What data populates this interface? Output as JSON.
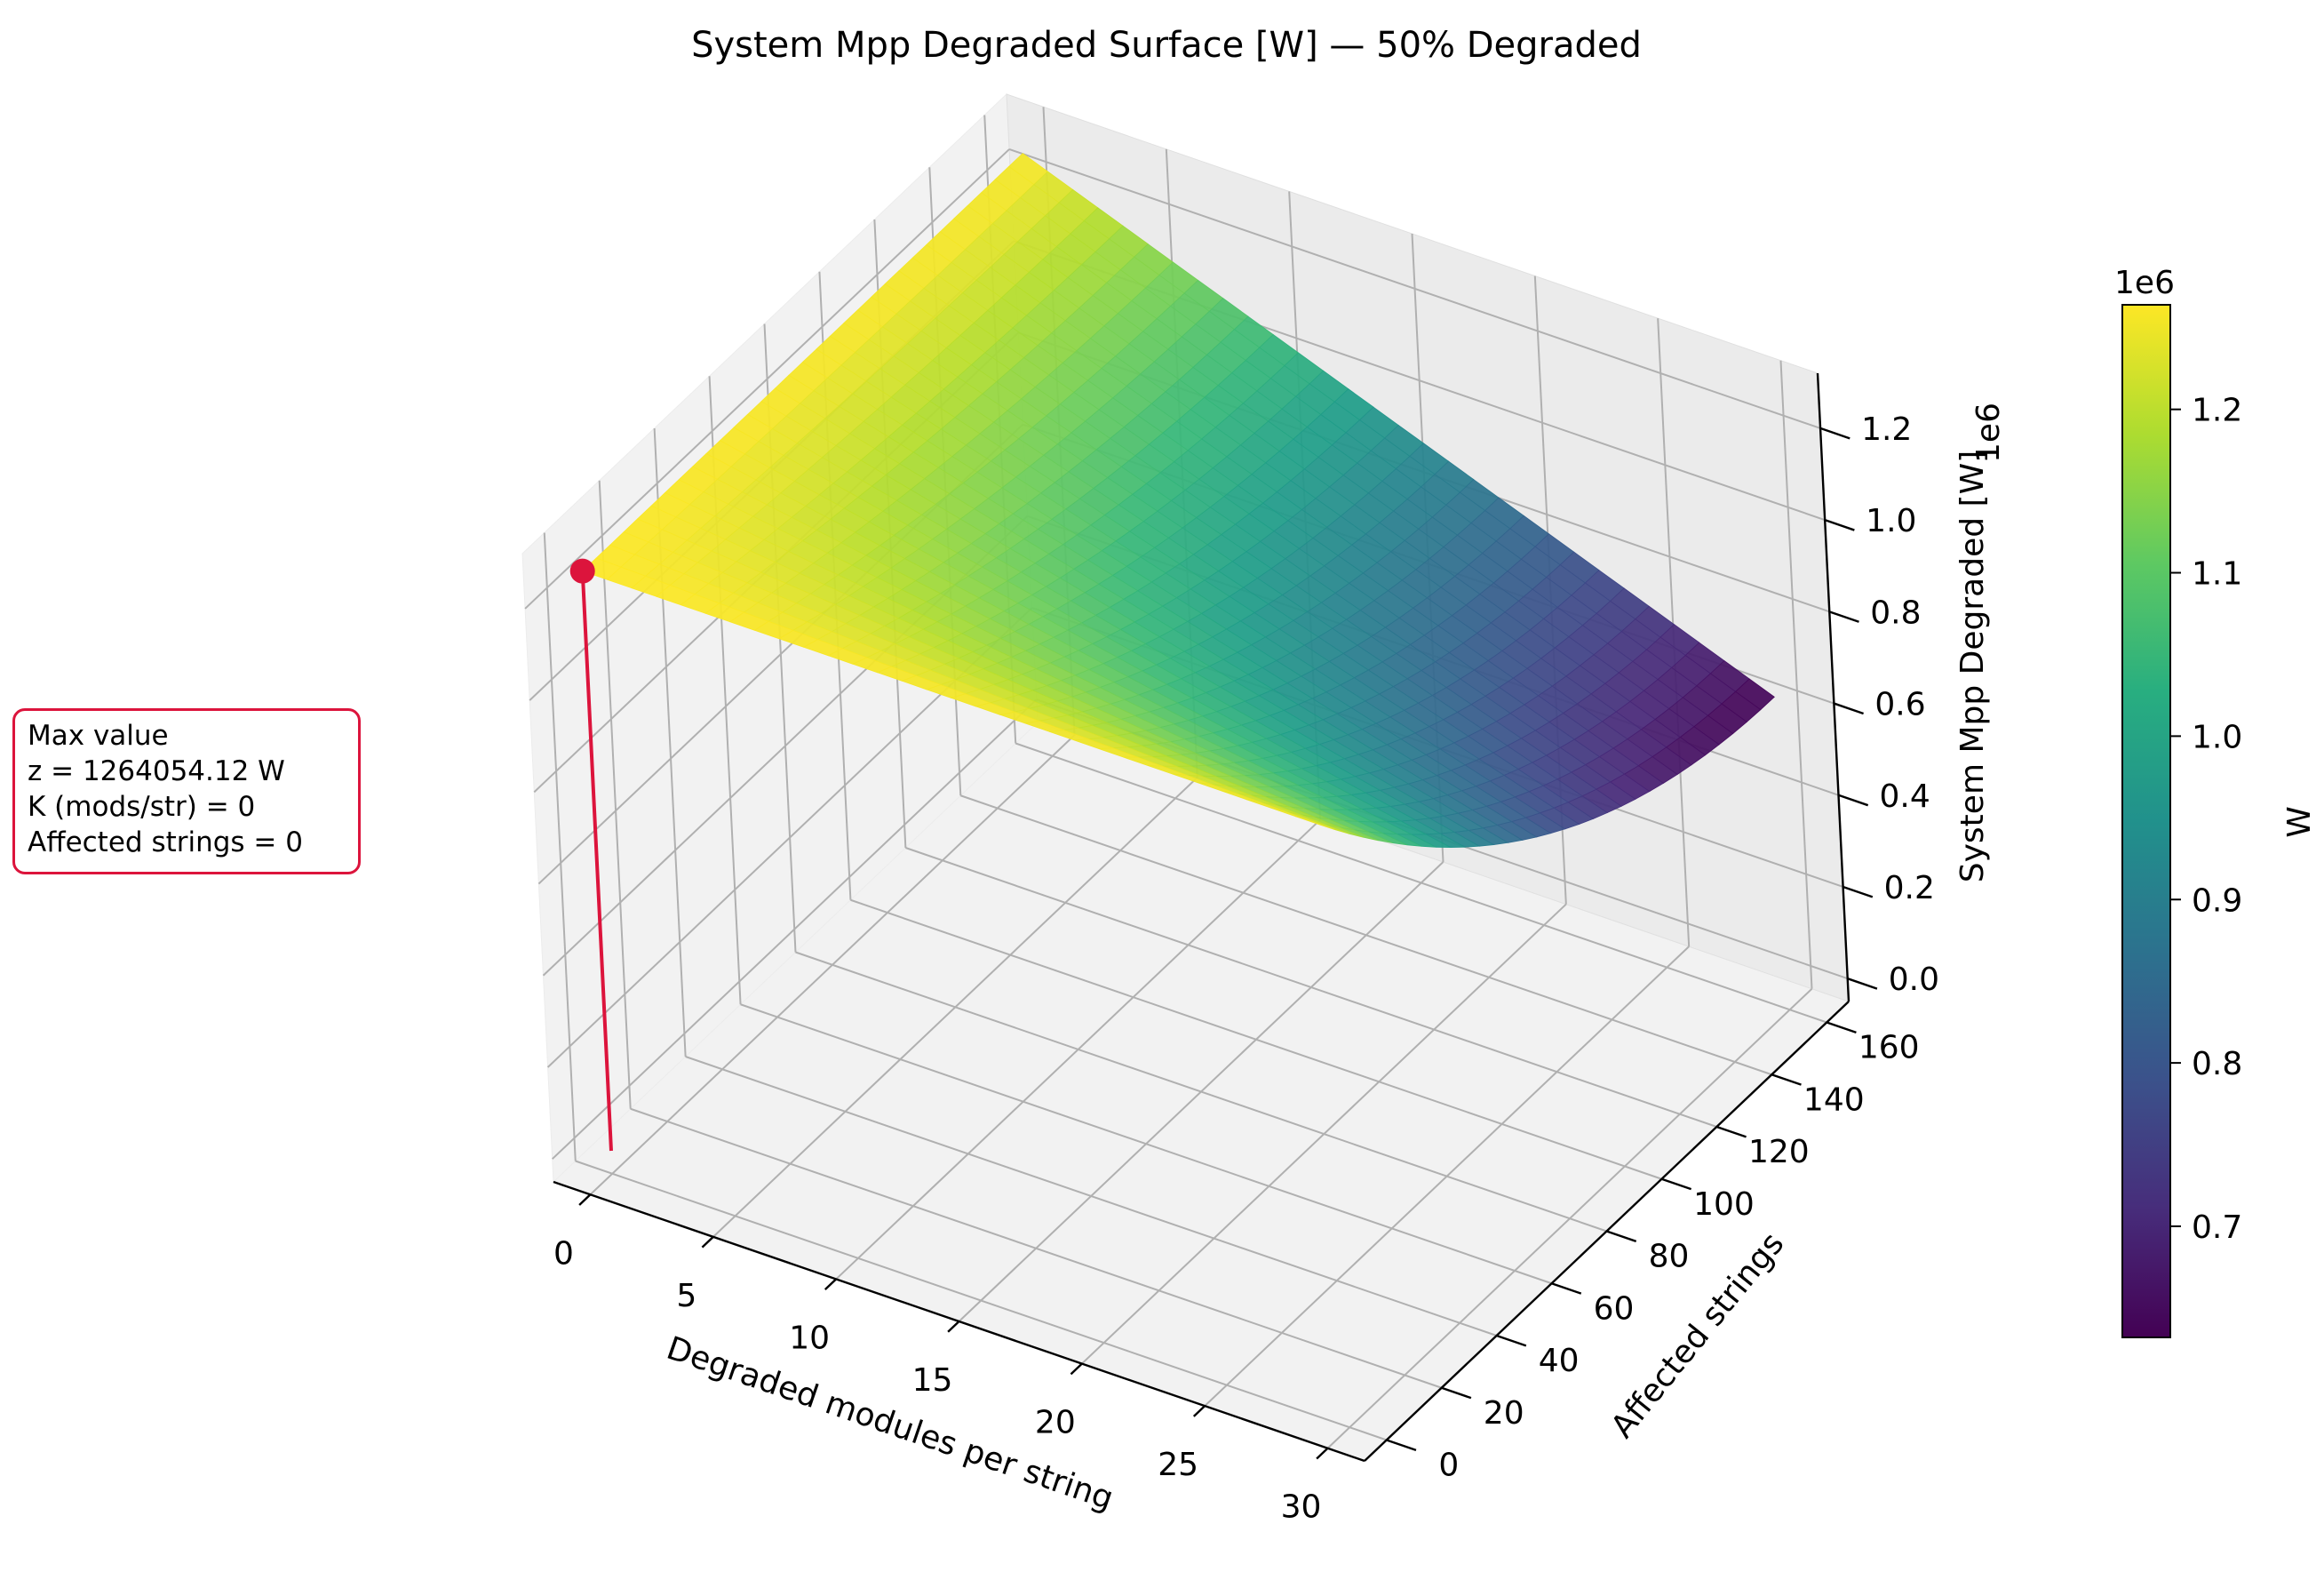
{
  "chart_data": {
    "type": "surface3d",
    "title": "System Mpp Degraded Surface [W] — 50% Degraded",
    "xlabel": "Degraded modules per string",
    "ylabel": "Affected strings",
    "zlabel": "System Mpp Degraded [W]",
    "z_offset_label": "1e6",
    "x_ticks": [
      "0",
      "5",
      "10",
      "15",
      "20",
      "25",
      "30"
    ],
    "y_ticks": [
      "0",
      "20",
      "40",
      "60",
      "80",
      "100",
      "120",
      "140",
      "160"
    ],
    "z_ticks": [
      "0.0",
      "0.2",
      "0.4",
      "0.6",
      "0.8",
      "1.0",
      "1.2"
    ],
    "xlim": [
      -1.5,
      31.5
    ],
    "ylim": [
      -8,
      168
    ],
    "zlim": [
      -0.05,
      1.32
    ],
    "x_range": [
      0,
      30
    ],
    "y_range": [
      0,
      160
    ],
    "surface_model": "z = 1264054.12 * (1 - 0.5 * (K / 30) * (strings / 160) * (2 - strings / 160))",
    "z_min": 632027.06,
    "z_max": 1264054.12,
    "max_point": {
      "x": 0,
      "y": 0,
      "z": 1264054.12
    },
    "colormap": "viridis",
    "colorbar": {
      "label": "W",
      "offset_label": "1e6",
      "ticks": [
        "0.7",
        "0.8",
        "0.9",
        "1.0",
        "1.1",
        "1.2"
      ],
      "range": [
        0.632,
        1.264
      ]
    },
    "marker_color": "#dc143c",
    "grid": true
  },
  "annotation": {
    "line1": "Max value",
    "line2": "z = 1264054.12 W",
    "line3": "K (mods/str) = 0",
    "line4": "Affected strings = 0"
  }
}
